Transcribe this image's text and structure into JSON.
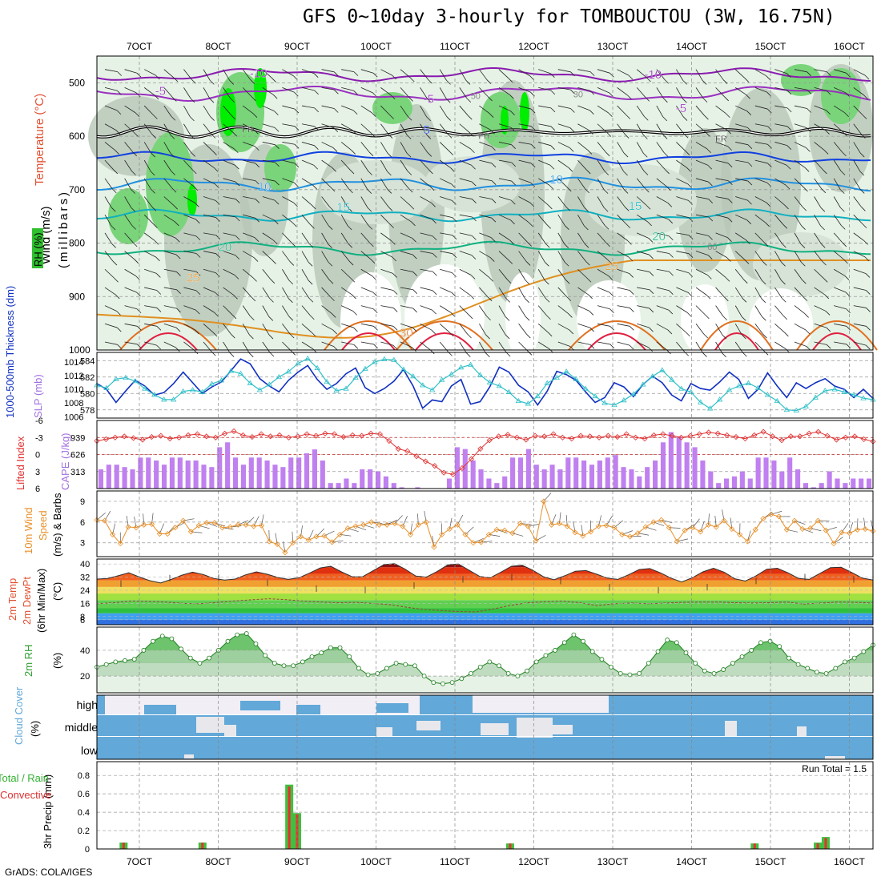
{
  "title": "GFS 0~10day 3-hourly for TOMBOUCTOU (3W, 16.75N)",
  "footer": "GrADS: COLA/IGES",
  "time_axis": {
    "labels": [
      "7OCT",
      "8OCT",
      "9OCT",
      "10OCT",
      "11OCT",
      "12OCT",
      "13OCT",
      "14OCT",
      "15OCT",
      "16OCT"
    ]
  },
  "colors": {
    "rh_green": "#7ad47a",
    "rh_bright": "#00ee00",
    "cape_bar": "#c080f0",
    "thickness": "#1030c0",
    "slp": "#30c0c8",
    "lifted": "#e03030",
    "wind_speed": "#e89028",
    "cloud": "#62a8d8",
    "precip_total": "#40c040",
    "precip_conv": "#e83030"
  },
  "chart_data": [
    {
      "type": "contour",
      "panel": "upper-air cross-section",
      "ylabel": "(millibars)",
      "legend_labels": {
        "rh": "RH (%)",
        "temperature": "Temperature (°C)",
        "wind": "Wind (m/s)"
      },
      "y_ticks": [
        500,
        600,
        700,
        800,
        900,
        1000
      ],
      "ylim": [
        1000,
        450
      ],
      "temperature_labels": [
        {
          "text": "-10",
          "date": "8.4OCT",
          "p": 490
        },
        {
          "text": "-10",
          "date": "13.4OCT",
          "p": 492
        },
        {
          "text": "-5",
          "date": "7.2OCT",
          "p": 523
        },
        {
          "text": "-5",
          "date": "10.6OCT",
          "p": 538
        },
        {
          "text": "-5",
          "date": "13.8OCT",
          "p": 555
        },
        {
          "text": "FR",
          "date": "8.3OCT",
          "p": 593
        },
        {
          "text": "FR",
          "date": "11.3OCT",
          "p": 605
        },
        {
          "text": "FR",
          "date": "14.3OCT",
          "p": 610
        },
        {
          "text": "5",
          "date": "10.6OCT",
          "p": 595
        },
        {
          "text": "10",
          "date": "8.5OCT",
          "p": 702
        },
        {
          "text": "10",
          "date": "12.2OCT",
          "p": 688
        },
        {
          "text": "15",
          "date": "9.5OCT",
          "p": 740
        },
        {
          "text": "15",
          "date": "13.2OCT",
          "p": 738
        },
        {
          "text": "20",
          "date": "8.0OCT",
          "p": 815
        },
        {
          "text": "20",
          "date": "13.5OCT",
          "p": 795
        },
        {
          "text": "25",
          "date": "7.6OCT",
          "p": 872
        },
        {
          "text": "25",
          "date": "12.9OCT",
          "p": 850
        },
        {
          "text": "30",
          "date": "10.3OCT",
          "p": 975
        }
      ],
      "rh_labels": [
        {
          "text": "50",
          "date": "11.2OCT",
          "p": 530
        },
        {
          "text": "30",
          "date": "12.5OCT",
          "p": 527
        },
        {
          "text": "60",
          "date": "14.2OCT",
          "p": 813
        }
      ]
    },
    {
      "type": "line",
      "panel": "thickness-slp",
      "y1label": "1000-500mb Thickness (dm)",
      "y2label": "SLP (mb)",
      "y1_ticks": [
        578,
        580,
        582,
        584
      ],
      "y2_ticks": [
        1006,
        1008,
        1010,
        1012,
        1014
      ],
      "y1lim": [
        577,
        585
      ],
      "y2lim": [
        1005.8,
        1015.4
      ],
      "series": [
        {
          "name": "1000-500mb Thickness (dm)",
          "values": [
            581.2,
            580.5,
            578.9,
            580.3,
            581.6,
            580.9,
            579.8,
            580.1,
            581.2,
            582.6,
            581.3,
            580.0,
            580.8,
            581.4,
            582.8,
            584.2,
            583.6,
            581.8,
            580.9,
            580.2,
            581.6,
            582.6,
            583.4,
            581.7,
            580.5,
            581.2,
            582.4,
            583.1,
            580.7,
            580.0,
            580.6,
            581.5,
            582.9,
            580.9,
            578.2,
            579.2,
            579.0,
            580.9,
            581.7,
            578.7,
            579.0,
            580.8,
            583.2,
            582.6,
            581.0,
            580.2,
            578.6,
            580.3,
            582.7,
            582.3,
            581.6,
            580.2,
            578.9,
            579.5,
            581.3,
            580.8,
            579.6,
            581.1,
            582.1,
            581.3,
            579.8,
            579.1,
            581.2,
            580.6,
            580.4,
            581.4,
            582.6,
            581.7,
            579.4,
            580.5,
            582.5,
            580.9,
            579.5,
            581.3,
            580.6,
            581.3,
            581.8,
            580.9,
            580.5,
            579.5,
            580.5,
            579.4
          ]
        },
        {
          "name": "SLP (mb)",
          "values": [
            1010.6,
            1010.2,
            1011.5,
            1011.7,
            1011.2,
            1010.1,
            1009.2,
            1008.5,
            1008.5,
            1009.7,
            1009.9,
            1009.6,
            1010.8,
            1011.3,
            1012.7,
            1012.3,
            1010.9,
            1009.9,
            1010.7,
            1011.8,
            1012.6,
            1013.8,
            1014.5,
            1013.1,
            1011.1,
            1009.8,
            1010.1,
            1011.7,
            1013.0,
            1014.0,
            1014.4,
            1014.3,
            1012.9,
            1011.9,
            1010.6,
            1009.9,
            1011.4,
            1012.2,
            1013.2,
            1013.6,
            1012.1,
            1011.0,
            1010.5,
            1009.6,
            1008.3,
            1007.9,
            1009.0,
            1010.9,
            1011.7,
            1012.6,
            1011.5,
            1010.1,
            1009.0,
            1008.0,
            1007.7,
            1008.4,
            1009.3,
            1010.7,
            1011.9,
            1012.8,
            1011.4,
            1010.1,
            1009.6,
            1008.1,
            1007.2,
            1008.5,
            1009.9,
            1010.5,
            1010.9,
            1010.2,
            1009.2,
            1008.3,
            1007.0,
            1006.9,
            1007.5,
            1008.8,
            1009.8,
            1010.0,
            1009.6,
            1009.2,
            1008.7,
            1008.5
          ]
        }
      ]
    },
    {
      "type": "bar+line",
      "panel": "cape-lifted-index",
      "y1label": "Lifted Index",
      "y2label": "CAPE (J/kg)",
      "y1_ticks": [
        6,
        3,
        0,
        -3,
        -6
      ],
      "y2_ticks": [
        313,
        626,
        939
      ],
      "y1lim": [
        6,
        -6
      ],
      "y2lim": [
        0,
        1252
      ],
      "series": [
        {
          "name": "CAPE (J/kg)",
          "values": [
            353,
            439,
            439,
            395,
            353,
            570,
            570,
            516,
            439,
            570,
            570,
            516,
            516,
            439,
            395,
            760,
            850,
            570,
            439,
            570,
            570,
            516,
            439,
            395,
            570,
            570,
            650,
            720,
            516,
            101,
            101,
            184,
            101,
            353,
            353,
            316,
            224,
            101,
            24,
            0,
            24,
            0,
            0,
            0,
            184,
            760,
            727,
            516,
            353,
            184,
            101,
            224,
            570,
            570,
            727,
            439,
            353,
            439,
            353,
            570,
            570,
            516,
            439,
            516,
            570,
            616,
            395,
            353,
            224,
            395,
            516,
            850,
            1038,
            960,
            850,
            760,
            516,
            316,
            101,
            184,
            224,
            316,
            184,
            570,
            570,
            516,
            316,
            570,
            353,
            101,
            24,
            101,
            316,
            184,
            101,
            184,
            184,
            184
          ]
        },
        {
          "name": "Lifted Index",
          "values": [
            -2.4,
            -2.7,
            -3.0,
            -3.2,
            -2.9,
            -2.6,
            -3.1,
            -3.3,
            -2.8,
            -3.0,
            -3.4,
            -3.6,
            -3.2,
            -3.0,
            -3.7,
            -4.1,
            -3.4,
            -3.1,
            -3.6,
            -3.2,
            -3.4,
            -3.0,
            -3.2,
            -3.6,
            -3.3,
            -3.7,
            -3.6,
            -3.1,
            -3.4,
            -3.3,
            -3.7,
            -3.6,
            -2.4,
            -1.0,
            -0.6,
            0.3,
            1.2,
            2.0,
            3.2,
            3.5,
            2.4,
            0.8,
            -1.0,
            -2.5,
            -3.2,
            -3.5,
            -3.0,
            -2.6,
            -3.3,
            -3.2,
            -3.6,
            -3.0,
            -2.8,
            -3.3,
            -3.2,
            -3.0,
            -3.3,
            -3.1,
            -3.6,
            -3.0,
            -2.8,
            -3.4,
            -3.6,
            -3.3,
            -3.0,
            -3.3,
            -3.6,
            -3.9,
            -3.7,
            -3.4,
            -3.1,
            -2.8,
            -3.4,
            -4.0,
            -3.2,
            -2.5,
            -3.2,
            -3.2,
            -3.7,
            -4.0,
            -3.3,
            -2.6,
            -3.0,
            -3.2,
            -2.7,
            -2.3
          ]
        }
      ]
    },
    {
      "type": "line",
      "panel": "10m-wind",
      "ylabel": "10m Wind Speed & Barbs (m/s)",
      "y_ticks": [
        3,
        6,
        9
      ],
      "ylim": [
        1,
        10.5
      ],
      "series": [
        {
          "name": "10m Wind Speed",
          "values": [
            6.3,
            6.2,
            4.2,
            2.9,
            5.3,
            5.2,
            5.6,
            5.7,
            4.3,
            4.3,
            5.2,
            6.2,
            4.6,
            5.5,
            5.9,
            5.9,
            5.2,
            5.3,
            5.6,
            5.6,
            5.4,
            5.5,
            3.2,
            2.8,
            1.6,
            3.0,
            3.9,
            3.4,
            3.9,
            4.0,
            3.1,
            4.2,
            5.1,
            5.4,
            5.6,
            6.0,
            5.6,
            5.6,
            5.8,
            5.4,
            4.2,
            5.6,
            6.0,
            2.4,
            4.2,
            5.0,
            5.6,
            4.2,
            3.0,
            3.1,
            4.2,
            4.9,
            4.8,
            4.4,
            5.8,
            5.4,
            3.3,
            9.0,
            5.6,
            5.8,
            5.4,
            4.5,
            4.0,
            4.6,
            5.4,
            5.5,
            5.2,
            4.2,
            3.9,
            4.4,
            5.3,
            6.0,
            6.3,
            5.2,
            3.2,
            4.8,
            5.2,
            4.6,
            5.6,
            5.3,
            6.2,
            5.0,
            4.2,
            3.2,
            4.9,
            6.5,
            7.1,
            6.8,
            4.9,
            6.2,
            5.0,
            5.1,
            6.2,
            4.8,
            2.9,
            4.5,
            4.4,
            4.9,
            5.0,
            4.7
          ]
        }
      ]
    },
    {
      "type": "area+line",
      "panel": "2m-temp",
      "ylabel": "2m Temp 2m DewPt (6hr Min/Max) (°C)",
      "y_ticks": [
        6,
        8,
        16,
        24,
        32,
        40
      ],
      "ylim": [
        3,
        43
      ],
      "series": [
        {
          "name": "2m Temp",
          "values": [
            30.8,
            31.2,
            32.8,
            34.6,
            32.0,
            29.8,
            28.4,
            30.6,
            33.2,
            35.0,
            33.6,
            31.2,
            30.2,
            30.8,
            33.4,
            35.2,
            33.8,
            31.8,
            30.6,
            31.6,
            34.4,
            37.6,
            38.6,
            35.2,
            32.2,
            32.2,
            36.0,
            39.6,
            40.2,
            36.8,
            32.6,
            32.0,
            35.4,
            39.4,
            40.0,
            36.2,
            32.4,
            31.6,
            35.0,
            38.6,
            39.2,
            36.2,
            32.2,
            30.4,
            32.8,
            35.6,
            36.0,
            33.8,
            31.4,
            30.6,
            33.4,
            36.6,
            37.2,
            34.6,
            31.4,
            29.0,
            31.6,
            35.2,
            37.4,
            35.0,
            31.0,
            29.6,
            32.8,
            36.8,
            37.4,
            34.6,
            31.2,
            30.6,
            34.2,
            37.8,
            38.0,
            34.8,
            31.4,
            30.2
          ]
        },
        {
          "name": "2m DewPt",
          "values": [
            15.8,
            16.4,
            17.5,
            17.2,
            16.8,
            16.0,
            15.8,
            16.6,
            17.5,
            18.2,
            18.8,
            18.2,
            17.4,
            16.8,
            16.4,
            16.6,
            16.0,
            15.2,
            13.6,
            12.2,
            11.6,
            11.0,
            10.8,
            12.6,
            14.8,
            16.4,
            17.0,
            17.4,
            16.4,
            14.6,
            15.8,
            16.2,
            15.8,
            16.2,
            16.6,
            16.8,
            16.8,
            16.4,
            16.2,
            16.4,
            16.8,
            15.6,
            16.2,
            16.8,
            16.6,
            16.2
          ]
        }
      ]
    },
    {
      "type": "area+line",
      "panel": "2m-rh",
      "ylabel": "2m RH (%)",
      "y_ticks": [
        20,
        40
      ],
      "ylim": [
        7,
        58
      ],
      "series": [
        {
          "name": "2m RH",
          "values": [
            27,
            29,
            31,
            32,
            33,
            40,
            47,
            51,
            49,
            41,
            34,
            30,
            34,
            40,
            47,
            52,
            53,
            45,
            36,
            30,
            28,
            28,
            31,
            35,
            38,
            42,
            42,
            35,
            26,
            21,
            22,
            26,
            30,
            29,
            28,
            20,
            15,
            14,
            15,
            18,
            22,
            27,
            31,
            28,
            22,
            20,
            24,
            31,
            36,
            40,
            46,
            52,
            47,
            39,
            33,
            27,
            22,
            21,
            22,
            30,
            39,
            48,
            46,
            38,
            30,
            24,
            22,
            25,
            30,
            35,
            40,
            46,
            47,
            43,
            34,
            29,
            26,
            23,
            22,
            26,
            31,
            34,
            39,
            44
          ]
        }
      ]
    },
    {
      "type": "heatmap",
      "panel": "cloud-cover",
      "ylabel": "Cloud Cover (%)",
      "rows": [
        "high",
        "middle",
        "low"
      ]
    },
    {
      "type": "bar",
      "panel": "precip",
      "ylabel": "3hr Precip (mm)",
      "y_ticks": [
        0,
        0.2,
        0.4,
        0.6,
        0.8
      ],
      "ylim": [
        0,
        0.95
      ],
      "annotation": "Run Total = 1.5",
      "series": [
        {
          "name": "Total / Rain",
          "x": [
            "6.8OCT",
            "7.8OCT",
            "8.9OCT",
            "9.0OCT",
            "11.7OCT",
            "14.8OCT",
            "15.6OCT",
            "15.7OCT"
          ],
          "values": [
            0.07,
            0.07,
            0.7,
            0.39,
            0.06,
            0.06,
            0.07,
            0.13
          ]
        },
        {
          "name": "Convective",
          "x": [
            "6.8OCT",
            "7.8OCT",
            "8.9OCT",
            "9.0OCT",
            "11.7OCT",
            "14.8OCT",
            "15.6OCT",
            "15.7OCT"
          ],
          "values": [
            0.07,
            0.07,
            0.68,
            0.38,
            0.06,
            0.06,
            0.06,
            0.12
          ]
        }
      ]
    }
  ]
}
